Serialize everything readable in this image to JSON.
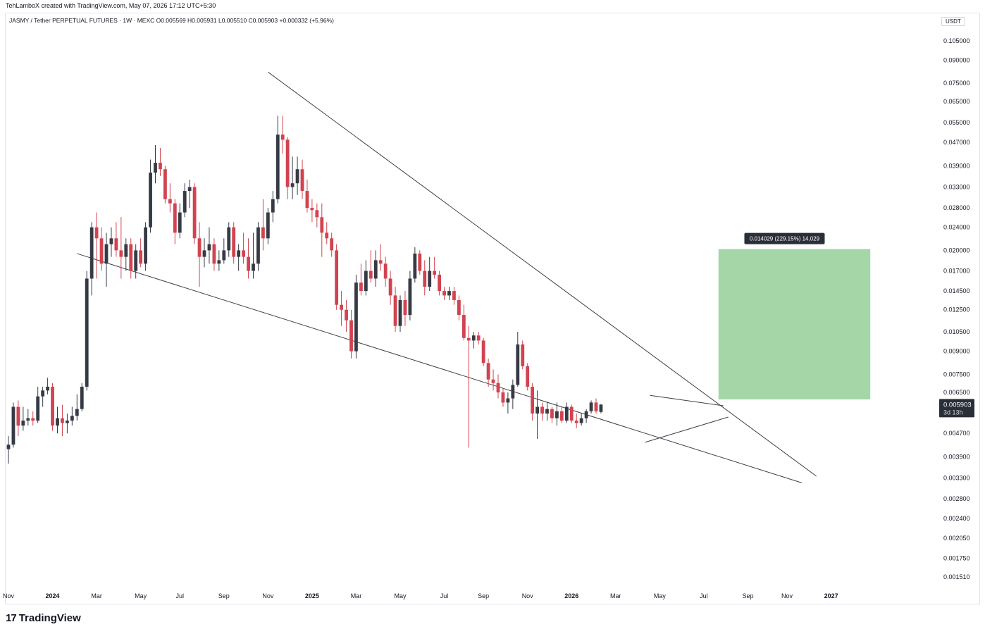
{
  "header": {
    "created_by": "TehLamboX created with TradingView.com, May 07, 2026 17:12 UTC+5:30",
    "symbol_line": "JASMY / Tether PERPETUAL FUTURES · 1W · MEXC  O0.005569  H0.005931  L0.005510  C0.005903  +0.000332 (+5.96%)"
  },
  "price_axis": {
    "currency": "USDT",
    "current_price": "0.005903",
    "countdown": "3d 13h"
  },
  "measure_label": "0.014029 (229.15%) 14,029",
  "brand": {
    "logo": "17",
    "name": "TradingView"
  },
  "colors": {
    "up": "#363a45",
    "down": "#d1434f",
    "target_zone": "#a5d6a7",
    "label_bg": "#2a2e39"
  },
  "chart_data": {
    "type": "candlestick",
    "scale": "log",
    "ylim": [
      0.00142,
      0.116
    ],
    "y_ticks": [
      "0.105000",
      "0.090000",
      "0.075000",
      "0.065000",
      "0.055000",
      "0.047000",
      "0.039000",
      "0.033000",
      "0.028000",
      "0.024000",
      "0.020000",
      "0.017000",
      "0.014500",
      "0.012500",
      "0.010500",
      "0.009000",
      "0.007500",
      "0.006500",
      "0.004700",
      "0.003900",
      "0.003300",
      "0.002800",
      "0.002400",
      "0.002050",
      "0.001750",
      "0.001510"
    ],
    "x_ticks": [
      {
        "label": "Nov",
        "week": 0
      },
      {
        "label": "2024",
        "week": 9,
        "bold": true
      },
      {
        "label": "Mar",
        "week": 18
      },
      {
        "label": "May",
        "week": 27
      },
      {
        "label": "Jul",
        "week": 35
      },
      {
        "label": "Sep",
        "week": 44
      },
      {
        "label": "Nov",
        "week": 53
      },
      {
        "label": "2025",
        "week": 62,
        "bold": true
      },
      {
        "label": "Mar",
        "week": 71
      },
      {
        "label": "May",
        "week": 80
      },
      {
        "label": "Jul",
        "week": 89
      },
      {
        "label": "Sep",
        "week": 97
      },
      {
        "label": "Nov",
        "week": 106
      },
      {
        "label": "2026",
        "week": 115,
        "bold": true
      },
      {
        "label": "Mar",
        "week": 124
      },
      {
        "label": "May",
        "week": 133
      },
      {
        "label": "Jul",
        "week": 142
      },
      {
        "label": "Sep",
        "week": 151
      },
      {
        "label": "Nov",
        "week": 159
      },
      {
        "label": "2027",
        "week": 168,
        "bold": true
      }
    ],
    "candles": [
      [
        0.00415,
        0.0046,
        0.0037,
        0.0043
      ],
      [
        0.0043,
        0.006,
        0.0042,
        0.0058
      ],
      [
        0.0058,
        0.0061,
        0.0046,
        0.005
      ],
      [
        0.005,
        0.0058,
        0.0048,
        0.0052
      ],
      [
        0.0052,
        0.0057,
        0.005,
        0.0053
      ],
      [
        0.0053,
        0.0056,
        0.005,
        0.0052
      ],
      [
        0.0052,
        0.0068,
        0.0051,
        0.0063
      ],
      [
        0.0063,
        0.0068,
        0.0058,
        0.0066
      ],
      [
        0.0066,
        0.0073,
        0.0064,
        0.0068
      ],
      [
        0.0068,
        0.007,
        0.0048,
        0.005
      ],
      [
        0.005,
        0.0058,
        0.0047,
        0.0053
      ],
      [
        0.0053,
        0.0059,
        0.0046,
        0.0051
      ],
      [
        0.0051,
        0.0055,
        0.0047,
        0.0052
      ],
      [
        0.0052,
        0.0058,
        0.005,
        0.0054
      ],
      [
        0.0054,
        0.0064,
        0.0052,
        0.0057
      ],
      [
        0.0057,
        0.007,
        0.0056,
        0.0068
      ],
      [
        0.0068,
        0.017,
        0.0066,
        0.016
      ],
      [
        0.016,
        0.025,
        0.014,
        0.024
      ],
      [
        0.024,
        0.027,
        0.016,
        0.022
      ],
      [
        0.022,
        0.024,
        0.017,
        0.018
      ],
      [
        0.018,
        0.023,
        0.015,
        0.021
      ],
      [
        0.021,
        0.024,
        0.019,
        0.022
      ],
      [
        0.022,
        0.025,
        0.019,
        0.02
      ],
      [
        0.02,
        0.026,
        0.016,
        0.019
      ],
      [
        0.019,
        0.022,
        0.017,
        0.021
      ],
      [
        0.021,
        0.022,
        0.016,
        0.017
      ],
      [
        0.017,
        0.021,
        0.016,
        0.02
      ],
      [
        0.02,
        0.022,
        0.0175,
        0.018
      ],
      [
        0.018,
        0.025,
        0.017,
        0.024
      ],
      [
        0.024,
        0.041,
        0.023,
        0.037
      ],
      [
        0.037,
        0.046,
        0.034,
        0.04
      ],
      [
        0.04,
        0.045,
        0.036,
        0.038
      ],
      [
        0.038,
        0.039,
        0.029,
        0.03
      ],
      [
        0.03,
        0.034,
        0.027,
        0.029
      ],
      [
        0.029,
        0.03,
        0.021,
        0.023
      ],
      [
        0.023,
        0.029,
        0.022,
        0.027
      ],
      [
        0.027,
        0.034,
        0.026,
        0.032
      ],
      [
        0.032,
        0.035,
        0.028,
        0.033
      ],
      [
        0.033,
        0.034,
        0.021,
        0.022
      ],
      [
        0.022,
        0.025,
        0.015,
        0.019
      ],
      [
        0.019,
        0.022,
        0.0175,
        0.02
      ],
      [
        0.02,
        0.024,
        0.018,
        0.021
      ],
      [
        0.021,
        0.022,
        0.017,
        0.018
      ],
      [
        0.018,
        0.02,
        0.017,
        0.0185
      ],
      [
        0.0185,
        0.022,
        0.018,
        0.02
      ],
      [
        0.02,
        0.025,
        0.019,
        0.024
      ],
      [
        0.024,
        0.025,
        0.018,
        0.019
      ],
      [
        0.019,
        0.021,
        0.017,
        0.02
      ],
      [
        0.02,
        0.023,
        0.018,
        0.019
      ],
      [
        0.019,
        0.022,
        0.016,
        0.017
      ],
      [
        0.017,
        0.023,
        0.016,
        0.018
      ],
      [
        0.018,
        0.025,
        0.017,
        0.024
      ],
      [
        0.024,
        0.03,
        0.02,
        0.022
      ],
      [
        0.022,
        0.028,
        0.021,
        0.027
      ],
      [
        0.027,
        0.032,
        0.025,
        0.03
      ],
      [
        0.03,
        0.058,
        0.029,
        0.05
      ],
      [
        0.05,
        0.058,
        0.043,
        0.048
      ],
      [
        0.048,
        0.049,
        0.03,
        0.033
      ],
      [
        0.033,
        0.042,
        0.03,
        0.034
      ],
      [
        0.034,
        0.042,
        0.031,
        0.038
      ],
      [
        0.038,
        0.041,
        0.03,
        0.032
      ],
      [
        0.032,
        0.035,
        0.027,
        0.028
      ],
      [
        0.028,
        0.03,
        0.025,
        0.0275
      ],
      [
        0.0275,
        0.029,
        0.024,
        0.026
      ],
      [
        0.026,
        0.029,
        0.019,
        0.023
      ],
      [
        0.023,
        0.025,
        0.021,
        0.022
      ],
      [
        0.022,
        0.023,
        0.019,
        0.02
      ],
      [
        0.02,
        0.021,
        0.0125,
        0.013
      ],
      [
        0.013,
        0.0145,
        0.011,
        0.0125
      ],
      [
        0.0125,
        0.0135,
        0.0105,
        0.0115
      ],
      [
        0.0115,
        0.0125,
        0.0085,
        0.009
      ],
      [
        0.009,
        0.0165,
        0.0085,
        0.0155
      ],
      [
        0.0155,
        0.018,
        0.014,
        0.0145
      ],
      [
        0.0145,
        0.0185,
        0.014,
        0.017
      ],
      [
        0.017,
        0.02,
        0.0155,
        0.016
      ],
      [
        0.016,
        0.02,
        0.015,
        0.0185
      ],
      [
        0.0185,
        0.021,
        0.017,
        0.018
      ],
      [
        0.018,
        0.019,
        0.015,
        0.016
      ],
      [
        0.016,
        0.017,
        0.013,
        0.014
      ],
      [
        0.014,
        0.015,
        0.0105,
        0.011
      ],
      [
        0.011,
        0.014,
        0.0105,
        0.0135
      ],
      [
        0.0135,
        0.0145,
        0.011,
        0.012
      ],
      [
        0.012,
        0.017,
        0.0115,
        0.016
      ],
      [
        0.016,
        0.0205,
        0.0155,
        0.0195
      ],
      [
        0.0195,
        0.02,
        0.0165,
        0.017
      ],
      [
        0.017,
        0.0185,
        0.014,
        0.015
      ],
      [
        0.015,
        0.019,
        0.0145,
        0.017
      ],
      [
        0.017,
        0.019,
        0.016,
        0.0165
      ],
      [
        0.0165,
        0.017,
        0.014,
        0.0145
      ],
      [
        0.0145,
        0.015,
        0.0135,
        0.014
      ],
      [
        0.014,
        0.015,
        0.0135,
        0.0145
      ],
      [
        0.0145,
        0.015,
        0.013,
        0.0135
      ],
      [
        0.0135,
        0.014,
        0.0115,
        0.012
      ],
      [
        0.012,
        0.013,
        0.0098,
        0.01
      ],
      [
        0.01,
        0.011,
        0.0042,
        0.0098
      ],
      [
        0.0098,
        0.0105,
        0.0092,
        0.0102
      ],
      [
        0.0102,
        0.0105,
        0.0095,
        0.0098
      ],
      [
        0.0098,
        0.01,
        0.008,
        0.0082
      ],
      [
        0.0082,
        0.0085,
        0.0068,
        0.0072
      ],
      [
        0.0072,
        0.0078,
        0.0066,
        0.007
      ],
      [
        0.007,
        0.0075,
        0.0062,
        0.0065
      ],
      [
        0.0065,
        0.0067,
        0.0058,
        0.006
      ],
      [
        0.006,
        0.0065,
        0.0055,
        0.0062
      ],
      [
        0.0062,
        0.0072,
        0.0057,
        0.0069
      ],
      [
        0.0069,
        0.0105,
        0.0068,
        0.0095
      ],
      [
        0.0095,
        0.0098,
        0.0078,
        0.008
      ],
      [
        0.008,
        0.0082,
        0.0066,
        0.0068
      ],
      [
        0.0068,
        0.007,
        0.0052,
        0.0055
      ],
      [
        0.0055,
        0.0066,
        0.0045,
        0.0058
      ],
      [
        0.0058,
        0.006,
        0.0052,
        0.0055
      ],
      [
        0.0055,
        0.006,
        0.0052,
        0.0057
      ],
      [
        0.0057,
        0.0058,
        0.0051,
        0.0053
      ],
      [
        0.0053,
        0.006,
        0.005,
        0.0056
      ],
      [
        0.0056,
        0.0058,
        0.0051,
        0.0052
      ],
      [
        0.0052,
        0.006,
        0.0051,
        0.0058
      ],
      [
        0.0058,
        0.0059,
        0.0051,
        0.0052
      ],
      [
        0.0052,
        0.0055,
        0.0049,
        0.0051
      ],
      [
        0.0051,
        0.0055,
        0.005,
        0.0053
      ],
      [
        0.0053,
        0.0057,
        0.0051,
        0.0056
      ],
      [
        0.0056,
        0.0061,
        0.0055,
        0.006
      ],
      [
        0.006,
        0.0062,
        0.0055,
        0.0056
      ],
      [
        0.00557,
        0.00593,
        0.00551,
        0.005903
      ]
    ],
    "trendlines": [
      {
        "name": "upper-resistance",
        "from": {
          "week": 53,
          "price": 0.082
        },
        "to": {
          "week": 165,
          "price": 0.00335
        }
      },
      {
        "name": "lower-support",
        "from": {
          "week": 14,
          "price": 0.0195
        },
        "to": {
          "week": 162,
          "price": 0.00318
        }
      },
      {
        "name": "triangle-top",
        "from": {
          "week": 131,
          "price": 0.00635
        },
        "to": {
          "week": 146,
          "price": 0.00585
        }
      },
      {
        "name": "triangle-bottom",
        "from": {
          "week": 130,
          "price": 0.00438
        },
        "to": {
          "week": 147,
          "price": 0.00535
        }
      }
    ],
    "target_zone": {
      "from_week": 145,
      "to_week": 176,
      "low": 0.00615,
      "high": 0.0202
    }
  }
}
